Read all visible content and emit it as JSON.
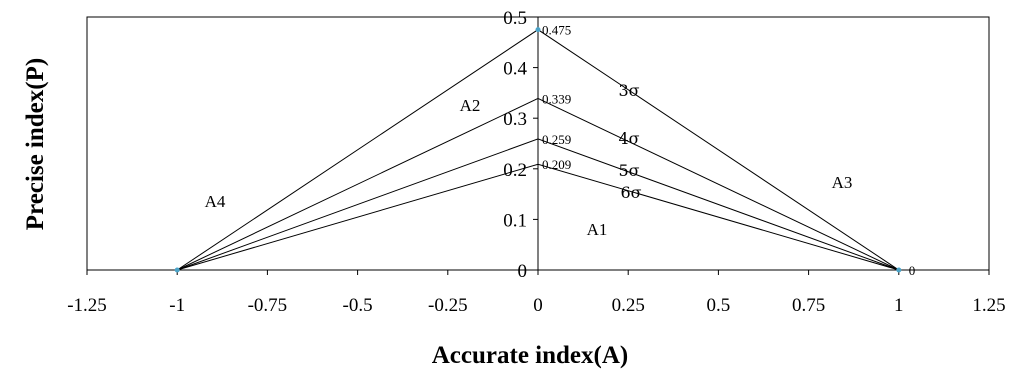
{
  "chart_data": {
    "type": "line",
    "xlabel": "Accurate index(A)",
    "ylabel": "Precise index(P)",
    "xlim": [
      -1.25,
      1.25
    ],
    "ylim": [
      0,
      0.5
    ],
    "x_ticks": [
      "-1.25",
      "-1",
      "-0.75",
      "-0.5",
      "-0.25",
      "0",
      "0.25",
      "0.5",
      "0.75",
      "1",
      "1.25"
    ],
    "y_ticks": [
      "0",
      "0.1",
      "0.2",
      "0.3",
      "0.4",
      "0.5"
    ],
    "grid": false,
    "series": [
      {
        "name": "3σ",
        "x": [
          -1,
          0,
          1
        ],
        "y": [
          0,
          0.475,
          0
        ],
        "peak_label": "0.475"
      },
      {
        "name": "4σ",
        "x": [
          -1,
          0,
          1
        ],
        "y": [
          0,
          0.339,
          0
        ],
        "peak_label": "0.339"
      },
      {
        "name": "5σ",
        "x": [
          -1,
          0,
          1
        ],
        "y": [
          0,
          0.259,
          0
        ],
        "peak_label": "0.259"
      },
      {
        "name": "6σ",
        "x": [
          -1,
          0,
          1
        ],
        "y": [
          0,
          0.209,
          0
        ],
        "peak_label": "0.209"
      }
    ],
    "endpoint_label": "0",
    "region_labels": [
      "A1",
      "A2",
      "A3",
      "A4"
    ]
  }
}
